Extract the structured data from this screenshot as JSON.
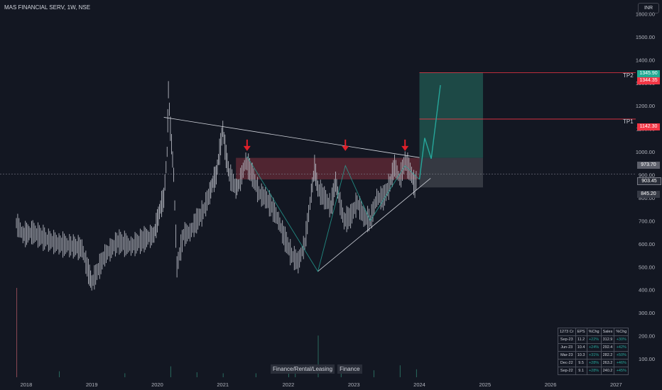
{
  "header": {
    "symbol_line": "MAS FINANCIAL SERV, 1W, NSE"
  },
  "currency": "INR",
  "tags": [
    "Finance/Rental/Leasing",
    "Finance"
  ],
  "price_labels": {
    "tp2_label": "TP2",
    "tp2_price": "1345.90",
    "tp2_stop": "1344.35",
    "tp1_label": "TP1",
    "tp1_price": "1142.30",
    "resistance": "973.70",
    "current": "903.45",
    "support": "845.20"
  },
  "colors": {
    "background": "#131722",
    "candle": "#b2b5be",
    "target_zone": "#1f4f4a",
    "stop_zone": "#3a3d46",
    "resistance_zone": "#7a2f3c",
    "target_line": "#f23645",
    "arrow": "#e0202a",
    "tp2_badge": "#22ab94",
    "trend_line": "#d1d4dc"
  },
  "table": {
    "headers": [
      "1273 Cr",
      "EPS",
      "%Chg",
      "Sales",
      "%Chg"
    ],
    "rows": [
      [
        "Sep-23",
        "11.2",
        "+22%",
        "312.9",
        "+30%"
      ],
      [
        "Jun-23",
        "10.4",
        "+24%",
        "292.4",
        "+42%"
      ],
      [
        "Mar-23",
        "10.3",
        "+31%",
        "282.2",
        "+50%"
      ],
      [
        "Dec-22",
        "9.5",
        "+28%",
        "263.2",
        "+46%"
      ],
      [
        "Sep-22",
        "9.1",
        "+28%",
        "240.2",
        "+45%"
      ]
    ]
  },
  "chart_data": {
    "type": "line",
    "title": "MAS FINANCIAL SERV, 1W, NSE",
    "x_ticks": [
      "2018",
      "2019",
      "2020",
      "2021",
      "2022",
      "2023",
      "2024",
      "2025",
      "2026",
      "2027"
    ],
    "y_ticks": [
      100,
      200,
      300,
      400,
      500,
      600,
      700,
      800,
      900,
      1000,
      1100,
      1200,
      1300,
      1400,
      1500,
      1600
    ],
    "ylim": [
      20,
      1660
    ],
    "xlim": [
      2017.6,
      2027.3
    ],
    "price_series": {
      "name": "",
      "x": [
        2017.85,
        2017.95,
        2018.1,
        2018.3,
        2018.5,
        2018.7,
        2018.85,
        2018.95,
        2019.0,
        2019.2,
        2019.4,
        2019.6,
        2019.8,
        2019.95,
        2020.0,
        2020.05,
        2020.1,
        2020.15,
        2020.17,
        2020.2,
        2020.25,
        2020.3,
        2020.4,
        2020.5,
        2020.6,
        2020.7,
        2020.8,
        2020.85,
        2020.9,
        2020.95,
        2021.0,
        2021.05,
        2021.1,
        2021.2,
        2021.25,
        2021.35,
        2021.45,
        2021.55,
        2021.65,
        2021.75,
        2021.85,
        2021.95,
        2022.05,
        2022.15,
        2022.25,
        2022.35,
        2022.4,
        2022.45,
        2022.55,
        2022.65,
        2022.72,
        2022.77,
        2022.85,
        2022.95,
        2023.05,
        2023.15,
        2023.25,
        2023.35,
        2023.45,
        2023.55,
        2023.62,
        2023.7,
        2023.78,
        2023.82,
        2023.88,
        2023.93,
        2023.97
      ],
      "y": [
        690,
        640,
        650,
        620,
        600,
        590,
        580,
        480,
        430,
        550,
        610,
        590,
        620,
        640,
        700,
        760,
        800,
        1000,
        1270,
        1100,
        900,
        500,
        640,
        650,
        700,
        740,
        820,
        870,
        900,
        1000,
        1100,
        980,
        900,
        840,
        860,
        960,
        900,
        820,
        800,
        760,
        700,
        620,
        550,
        520,
        600,
        820,
        930,
        840,
        800,
        760,
        870,
        800,
        700,
        720,
        780,
        720,
        700,
        800,
        800,
        860,
        940,
        880,
        960,
        940,
        900,
        850,
        900
      ]
    },
    "projection": {
      "x": [
        2024.0,
        2024.08,
        2024.18,
        2024.32
      ],
      "y": [
        880,
        1060,
        970,
        1290
      ]
    },
    "levels": {
      "tp2": 1344.35,
      "tp1": 1142.3,
      "resistance_top": 973.7,
      "resistance_bottom": 880,
      "current": 903.45,
      "support": 845.2
    },
    "resistance_zone": {
      "x_start": 2021.2,
      "x_end": 2024.0,
      "y_top": 973.7,
      "y_bottom": 880
    },
    "target_zone": {
      "x_start": 2024.0,
      "x_end": 2024.97,
      "y_top": 1344.35,
      "y_bottom": 973.7
    },
    "stop_zone": {
      "x_start": 2024.0,
      "x_end": 2024.97,
      "y_top": 973.7,
      "y_bottom": 845.2
    },
    "descending_trendline": {
      "x": [
        2020.1,
        2024.0
      ],
      "y": [
        1150,
        975
      ]
    },
    "ascending_trendline": {
      "x": [
        2022.45,
        2024.17
      ],
      "y": [
        480,
        885
      ]
    },
    "arrows_at": [
      {
        "x": 2021.37,
        "y": 1010
      },
      {
        "x": 2022.87,
        "y": 1010
      },
      {
        "x": 2023.78,
        "y": 1010
      }
    ],
    "volume": {
      "x": [
        2017.85,
        2018.5,
        2019.5,
        2020.2,
        2020.6,
        2021.0,
        2021.5,
        2022.0,
        2022.1,
        2022.45,
        2022.8,
        2023.3,
        2023.7,
        2023.95
      ],
      "v": [
        450,
        30,
        20,
        55,
        25,
        20,
        20,
        40,
        40,
        210,
        20,
        35,
        60,
        40
      ]
    }
  }
}
